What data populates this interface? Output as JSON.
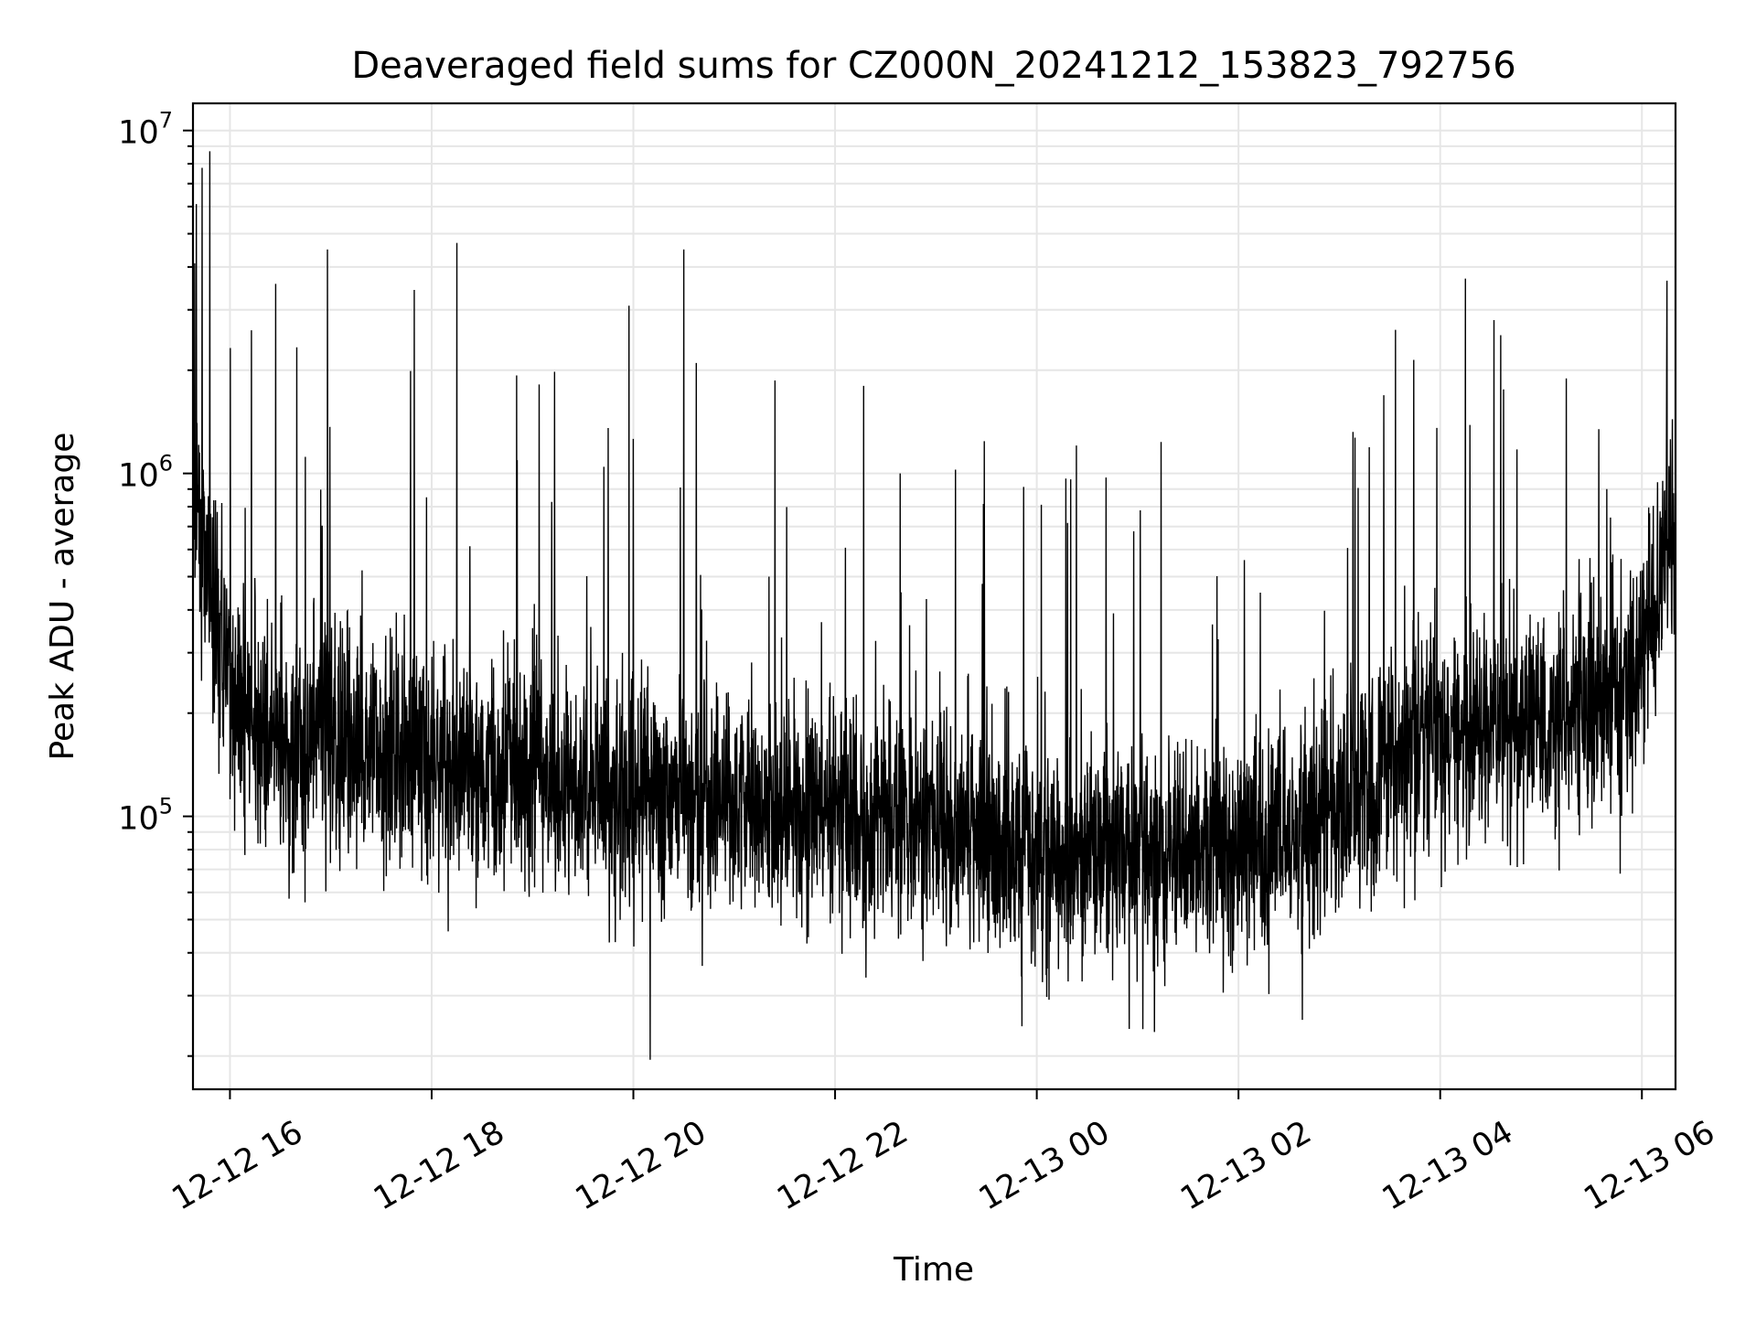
{
  "chart_data": {
    "type": "line",
    "title": "Deaveraged field sums for CZ000N_20241212_153823_792756",
    "xlabel": "Time",
    "ylabel": "Peak ADU - average",
    "x_ticks": [
      "12-12 16",
      "12-12 18",
      "12-12 20",
      "12-12 22",
      "12-13 00",
      "12-13 02",
      "12-13 04",
      "12-13 06"
    ],
    "y_ticks": [
      {
        "value": 100000,
        "base": "10",
        "exp": "5"
      },
      {
        "value": 1000000,
        "base": "10",
        "exp": "6"
      },
      {
        "value": 10000000,
        "base": "10",
        "exp": "7"
      }
    ],
    "xlim": [
      "2024-12-12 15:38",
      "2024-12-13 06:20"
    ],
    "ylim": [
      16000,
      12000000
    ],
    "yscale": "log",
    "grid": true,
    "line_color": "#000000",
    "grid_color": "#e6e6e6",
    "series": [
      {
        "points": [
          [
            "2024-12-12 15:38",
            900000
          ],
          [
            "2024-12-12 15:40",
            700000
          ],
          [
            "2024-12-12 15:43",
            620000
          ],
          [
            "2024-12-12 15:46",
            540000
          ],
          [
            "2024-12-12 15:50",
            430000
          ],
          [
            "2024-12-12 15:55",
            300000
          ],
          [
            "2024-12-12 16:00",
            230000
          ],
          [
            "2024-12-12 16:10",
            190000
          ],
          [
            "2024-12-12 16:30",
            170000
          ],
          [
            "2024-12-12 17:00",
            165000
          ],
          [
            "2024-12-12 17:30",
            160000
          ],
          [
            "2024-12-12 18:00",
            145000
          ],
          [
            "2024-12-12 18:30",
            135000
          ],
          [
            "2024-12-12 19:00",
            128000
          ],
          [
            "2024-12-12 19:30",
            122000
          ],
          [
            "2024-12-12 20:00",
            115000
          ],
          [
            "2024-12-12 20:30",
            112000
          ],
          [
            "2024-12-12 21:00",
            108000
          ],
          [
            "2024-12-12 21:30",
            104000
          ],
          [
            "2024-12-12 22:00",
            100000
          ],
          [
            "2024-12-12 22:30",
            95000
          ],
          [
            "2024-12-12 23:00",
            90000
          ],
          [
            "2024-12-12 23:30",
            85000
          ],
          [
            "2024-12-13 00:00",
            80000
          ],
          [
            "2024-12-13 00:30",
            77000
          ],
          [
            "2024-12-13 01:00",
            76000
          ],
          [
            "2024-12-13 01:30",
            78000
          ],
          [
            "2024-12-13 02:00",
            83000
          ],
          [
            "2024-12-13 02:30",
            92000
          ],
          [
            "2024-12-13 03:00",
            110000
          ],
          [
            "2024-12-13 03:30",
            140000
          ],
          [
            "2024-12-13 04:00",
            170000
          ],
          [
            "2024-12-13 04:30",
            190000
          ],
          [
            "2024-12-13 05:00",
            200000
          ],
          [
            "2024-12-13 05:30",
            205000
          ],
          [
            "2024-12-13 05:50",
            220000
          ],
          [
            "2024-12-13 06:05",
            330000
          ],
          [
            "2024-12-13 06:12",
            550000
          ],
          [
            "2024-12-13 06:20",
            800000
          ]
        ]
      }
    ],
    "notable_peaks": [
      [
        "2024-12-12 15:39",
        4100000
      ],
      [
        "2024-12-12 15:40",
        6100000
      ],
      [
        "2024-12-12 15:48",
        8700000
      ],
      [
        "2024-12-12 16:58",
        4500000
      ],
      [
        "2024-12-12 18:15",
        4700000
      ],
      [
        "2024-12-12 20:30",
        4500000
      ],
      [
        "2024-12-12 22:17",
        1800000
      ],
      [
        "2024-12-13 04:15",
        3700000
      ],
      [
        "2024-12-13 04:32",
        2800000
      ]
    ],
    "notable_dips": [
      [
        "2024-12-12 20:10",
        19500
      ],
      [
        "2024-12-13 00:55",
        24000
      ],
      [
        "2024-12-13 01:10",
        23500
      ],
      [
        "2024-12-13 02:38",
        25500
      ]
    ]
  }
}
